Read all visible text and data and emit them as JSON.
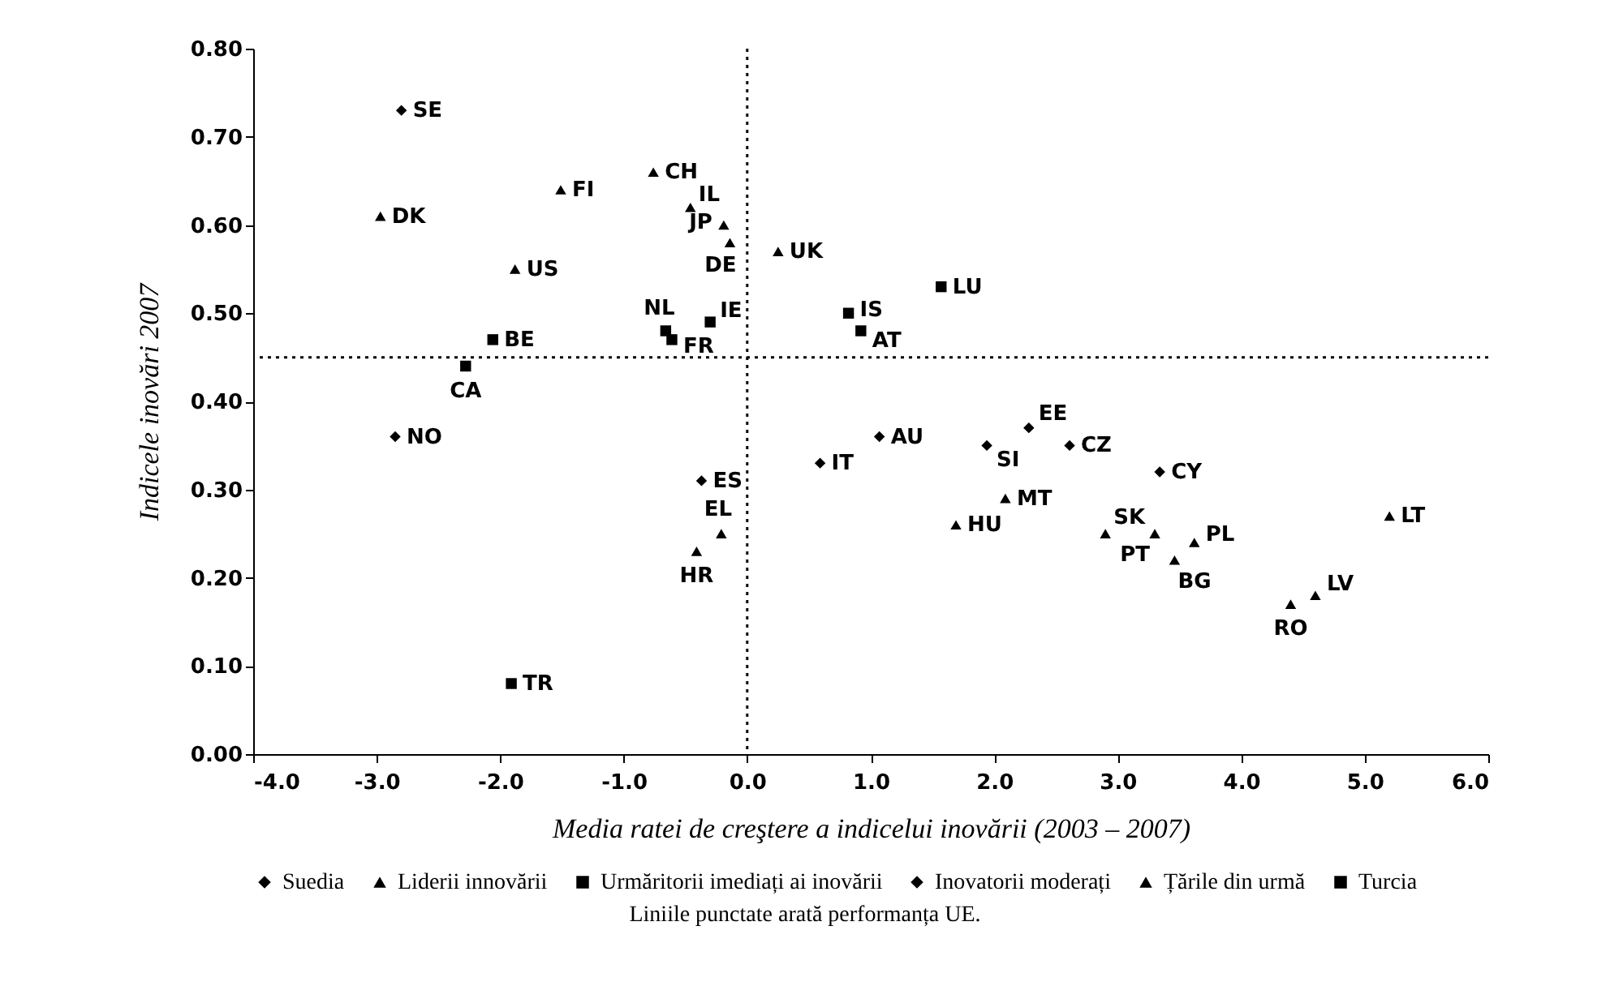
{
  "chart_data": {
    "type": "scatter",
    "xlabel": "Media ratei de creştere a indicelui inovării (2003 – 2007)",
    "ylabel": "Indicele inovări 2007",
    "xlim": [
      -4.0,
      6.0
    ],
    "xticks": [
      {
        "value": -4,
        "label": "-4.0"
      },
      {
        "value": -3,
        "label": "-3.0"
      },
      {
        "value": -2,
        "label": "-2.0"
      },
      {
        "value": -1,
        "label": "-1.0"
      },
      {
        "value": 0,
        "label": "0.0"
      },
      {
        "value": 1,
        "label": "1.0"
      },
      {
        "value": 2,
        "label": "2.0"
      },
      {
        "value": 3,
        "label": "3.0"
      },
      {
        "value": 4,
        "label": "4.0"
      },
      {
        "value": 5,
        "label": "5.0"
      },
      {
        "value": 6,
        "label": "6.0"
      }
    ],
    "ylim": [
      0,
      0.8
    ],
    "yticks": [
      {
        "value": 0,
        "label": "0.00"
      },
      {
        "value": 0.1,
        "label": "0.10"
      },
      {
        "value": 0.2,
        "label": "0.20"
      },
      {
        "value": 0.3,
        "label": "0.30"
      },
      {
        "value": 0.4,
        "label": "0.40"
      },
      {
        "value": 0.5,
        "label": "0.50"
      },
      {
        "value": 0.6,
        "label": "0.60"
      },
      {
        "value": 0.7,
        "label": "0.70"
      },
      {
        "value": 0.8,
        "label": "0.80"
      }
    ],
    "grid": false,
    "legend": "bottom",
    "series": [
      {
        "name": "Suedia",
        "color": "#000000",
        "marker": "diamond",
        "x": [
          -2.8
        ],
        "values": [
          0.73
        ]
      },
      {
        "name": "Liderii innovării",
        "color": "#000000",
        "marker": "triangle",
        "x": [
          -2.97,
          -1.51,
          -0.76,
          -0.46,
          -0.19,
          -0.14,
          -1.88,
          0.25
        ],
        "values": [
          0.61,
          0.64,
          0.66,
          0.62,
          0.6,
          0.58,
          0.55,
          0.57
        ]
      },
      {
        "name": "Urmăritorii imediați ai inovării",
        "color": "#000000",
        "marker": "square",
        "x": [
          -0.66,
          -0.61,
          -0.3,
          -2.06,
          -2.28,
          0.82,
          0.92,
          1.57
        ],
        "values": [
          0.48,
          0.47,
          0.49,
          0.47,
          0.44,
          0.5,
          0.48,
          0.53
        ]
      },
      {
        "name": "Inovatorii moderați",
        "color": "#000000",
        "marker": "diamond",
        "x": [
          -2.85,
          -0.37,
          0.59,
          1.07,
          1.94,
          2.28,
          2.61,
          3.34
        ],
        "values": [
          0.36,
          0.31,
          0.33,
          0.36,
          0.35,
          0.37,
          0.35,
          0.32
        ]
      },
      {
        "name": "Țările din urmă",
        "color": "#000000",
        "marker": "triangle",
        "x": [
          -0.21,
          -0.41,
          1.69,
          2.09,
          2.9,
          3.3,
          3.46,
          3.62,
          4.4,
          4.6,
          5.2
        ],
        "values": [
          0.25,
          0.23,
          0.26,
          0.29,
          0.25,
          0.25,
          0.22,
          0.24,
          0.17,
          0.18,
          0.27
        ]
      },
      {
        "name": "Turcia",
        "color": "#000000",
        "marker": "square",
        "x": [
          -1.91
        ],
        "values": [
          0.08
        ]
      }
    ],
    "ref_lines": [
      {
        "axis": "x",
        "value": 0,
        "color": "#000000",
        "line_style": "dotted"
      },
      {
        "axis": "y",
        "value": 0.45,
        "color": "#000000",
        "line_style": "dotted"
      }
    ],
    "annotations": [
      {
        "text": "SE",
        "x": -2.8,
        "y": 0.73
      },
      {
        "text": "DK",
        "x": -2.97,
        "y": 0.61
      },
      {
        "text": "FI",
        "x": -1.51,
        "y": 0.64
      },
      {
        "text": "CH",
        "x": -0.76,
        "y": 0.66
      },
      {
        "text": "IL",
        "x": -0.46,
        "y": 0.62
      },
      {
        "text": "JP",
        "x": -0.19,
        "y": 0.6
      },
      {
        "text": "DE",
        "x": -0.14,
        "y": 0.58
      },
      {
        "text": "US",
        "x": -1.88,
        "y": 0.55
      },
      {
        "text": "UK",
        "x": 0.25,
        "y": 0.57
      },
      {
        "text": "NL",
        "x": -0.66,
        "y": 0.48
      },
      {
        "text": "FR",
        "x": -0.61,
        "y": 0.47
      },
      {
        "text": "IE",
        "x": -0.3,
        "y": 0.49
      },
      {
        "text": "BE",
        "x": -2.06,
        "y": 0.47
      },
      {
        "text": "CA",
        "x": -2.28,
        "y": 0.44
      },
      {
        "text": "IS",
        "x": 0.82,
        "y": 0.5
      },
      {
        "text": "AT",
        "x": 0.92,
        "y": 0.48
      },
      {
        "text": "LU",
        "x": 1.57,
        "y": 0.53
      },
      {
        "text": "NO",
        "x": -2.85,
        "y": 0.36
      },
      {
        "text": "ES",
        "x": -0.37,
        "y": 0.31
      },
      {
        "text": "IT",
        "x": 0.59,
        "y": 0.33
      },
      {
        "text": "AU",
        "x": 1.07,
        "y": 0.36
      },
      {
        "text": "SI",
        "x": 1.94,
        "y": 0.35
      },
      {
        "text": "EE",
        "x": 2.28,
        "y": 0.37
      },
      {
        "text": "CZ",
        "x": 2.61,
        "y": 0.35
      },
      {
        "text": "CY",
        "x": 3.34,
        "y": 0.32
      },
      {
        "text": "EL",
        "x": -0.21,
        "y": 0.25
      },
      {
        "text": "HR",
        "x": -0.41,
        "y": 0.23
      },
      {
        "text": "HU",
        "x": 1.69,
        "y": 0.26
      },
      {
        "text": "MT",
        "x": 2.09,
        "y": 0.29
      },
      {
        "text": "SK",
        "x": 2.9,
        "y": 0.25
      },
      {
        "text": "PT",
        "x": 3.3,
        "y": 0.25
      },
      {
        "text": "BG",
        "x": 3.46,
        "y": 0.22
      },
      {
        "text": "PL",
        "x": 3.62,
        "y": 0.24
      },
      {
        "text": "RO",
        "x": 4.4,
        "y": 0.17
      },
      {
        "text": "LV",
        "x": 4.6,
        "y": 0.18
      },
      {
        "text": "LT",
        "x": 5.2,
        "y": 0.27
      },
      {
        "text": "TR",
        "x": -1.91,
        "y": 0.08
      },
      "Liniile punctate arată performanța UE."
    ]
  }
}
